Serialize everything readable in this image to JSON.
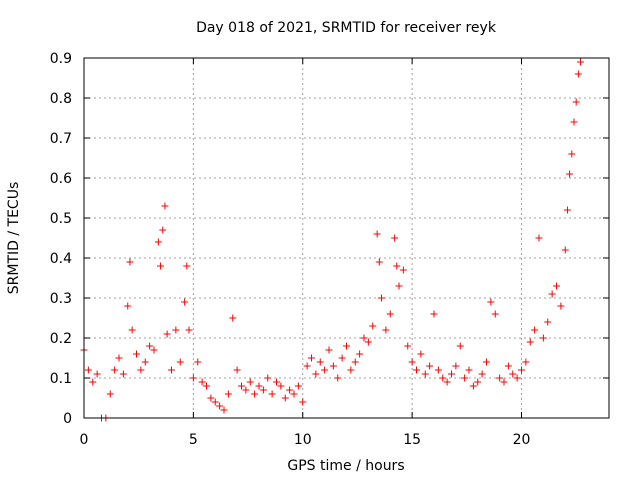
{
  "chart_data": {
    "type": "scatter",
    "title": "Day 018 of 2021, SRMTID for receiver reyk",
    "xlabel": "GPS time / hours",
    "ylabel": "SRMTID / TECUs",
    "xlim": [
      0,
      24
    ],
    "ylim": [
      0,
      0.9
    ],
    "x_ticks": [
      0,
      5,
      10,
      15,
      20
    ],
    "y_ticks": [
      0,
      0.1,
      0.2,
      0.3,
      0.4,
      0.5,
      0.6,
      0.7,
      0.8,
      0.9
    ],
    "grid": true,
    "marker": "+",
    "color": "#ff0000",
    "series": [
      {
        "name": "SRMTID",
        "x": [
          0.0,
          0.2,
          0.4,
          0.6,
          0.8,
          1.0,
          1.2,
          1.4,
          1.6,
          1.8,
          2.0,
          2.1,
          2.2,
          2.4,
          2.6,
          2.8,
          3.0,
          3.2,
          3.4,
          3.5,
          3.6,
          3.7,
          3.8,
          4.0,
          4.2,
          4.4,
          4.6,
          4.7,
          4.8,
          5.0,
          5.2,
          5.4,
          5.6,
          5.8,
          6.0,
          6.2,
          6.4,
          6.6,
          6.8,
          7.0,
          7.2,
          7.4,
          7.6,
          7.8,
          8.0,
          8.2,
          8.4,
          8.6,
          8.8,
          9.0,
          9.2,
          9.4,
          9.6,
          9.8,
          10.0,
          10.2,
          10.4,
          10.6,
          10.8,
          11.0,
          11.2,
          11.4,
          11.6,
          11.8,
          12.0,
          12.2,
          12.4,
          12.6,
          12.8,
          13.0,
          13.2,
          13.4,
          13.5,
          13.6,
          13.8,
          14.0,
          14.2,
          14.3,
          14.4,
          14.6,
          14.8,
          15.0,
          15.2,
          15.4,
          15.6,
          15.8,
          16.0,
          16.2,
          16.4,
          16.6,
          16.8,
          17.0,
          17.2,
          17.4,
          17.6,
          17.8,
          18.0,
          18.2,
          18.4,
          18.6,
          18.8,
          19.0,
          19.2,
          19.4,
          19.6,
          19.8,
          20.0,
          20.2,
          20.4,
          20.6,
          20.8,
          21.0,
          21.2,
          21.4,
          21.6,
          21.8,
          22.0,
          22.1,
          22.2,
          22.3,
          22.4,
          22.5,
          22.6,
          22.7
        ],
        "y": [
          0.17,
          0.12,
          0.09,
          0.11,
          0.0,
          0.0,
          0.06,
          0.12,
          0.15,
          0.11,
          0.28,
          0.39,
          0.22,
          0.16,
          0.12,
          0.14,
          0.18,
          0.17,
          0.44,
          0.38,
          0.47,
          0.53,
          0.21,
          0.12,
          0.22,
          0.14,
          0.29,
          0.38,
          0.22,
          0.1,
          0.14,
          0.09,
          0.08,
          0.05,
          0.04,
          0.03,
          0.02,
          0.06,
          0.25,
          0.12,
          0.08,
          0.07,
          0.09,
          0.06,
          0.08,
          0.07,
          0.1,
          0.06,
          0.09,
          0.08,
          0.05,
          0.07,
          0.06,
          0.08,
          0.04,
          0.13,
          0.15,
          0.11,
          0.14,
          0.12,
          0.17,
          0.13,
          0.1,
          0.15,
          0.18,
          0.12,
          0.14,
          0.16,
          0.2,
          0.19,
          0.23,
          0.46,
          0.39,
          0.3,
          0.22,
          0.26,
          0.45,
          0.38,
          0.33,
          0.37,
          0.18,
          0.14,
          0.12,
          0.16,
          0.11,
          0.13,
          0.26,
          0.12,
          0.1,
          0.09,
          0.11,
          0.13,
          0.18,
          0.1,
          0.12,
          0.08,
          0.09,
          0.11,
          0.14,
          0.29,
          0.26,
          0.1,
          0.09,
          0.13,
          0.11,
          0.1,
          0.12,
          0.14,
          0.19,
          0.22,
          0.45,
          0.2,
          0.24,
          0.31,
          0.33,
          0.28,
          0.42,
          0.52,
          0.61,
          0.66,
          0.74,
          0.79,
          0.86,
          0.89
        ]
      }
    ]
  }
}
